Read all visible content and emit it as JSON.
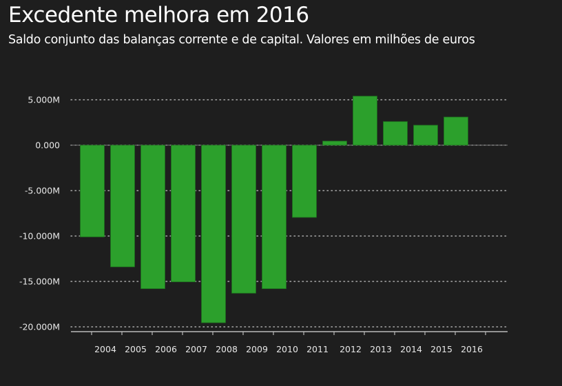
{
  "chart_data": {
    "type": "bar",
    "title": "Excedente melhora em 2016",
    "subtitle": "Saldo conjunto das balanças corrente e de capital. Valores em milhões de euros",
    "xlabel": "",
    "ylabel": "",
    "categories": [
      "2004",
      "2005",
      "2006",
      "2007",
      "2008",
      "2009",
      "2010",
      "2011",
      "2012",
      "2013",
      "2014",
      "2015",
      "2016"
    ],
    "values": [
      -10100,
      -13400,
      -15800,
      -15050,
      -19550,
      -16300,
      -15800,
      -7950,
      450,
      5400,
      2600,
      2200,
      3100
    ],
    "ylim": [
      -20000,
      5000
    ],
    "yticks": [
      5000,
      0,
      -5000,
      -10000,
      -15000,
      -20000
    ],
    "ytick_labels": [
      "5.000M",
      "0.000",
      "-5.000M",
      "-10.000M",
      "-15.000M",
      "-20.000M"
    ],
    "grid": true,
    "bar_color": "#2ca02c",
    "background": "#1e1e1e"
  }
}
